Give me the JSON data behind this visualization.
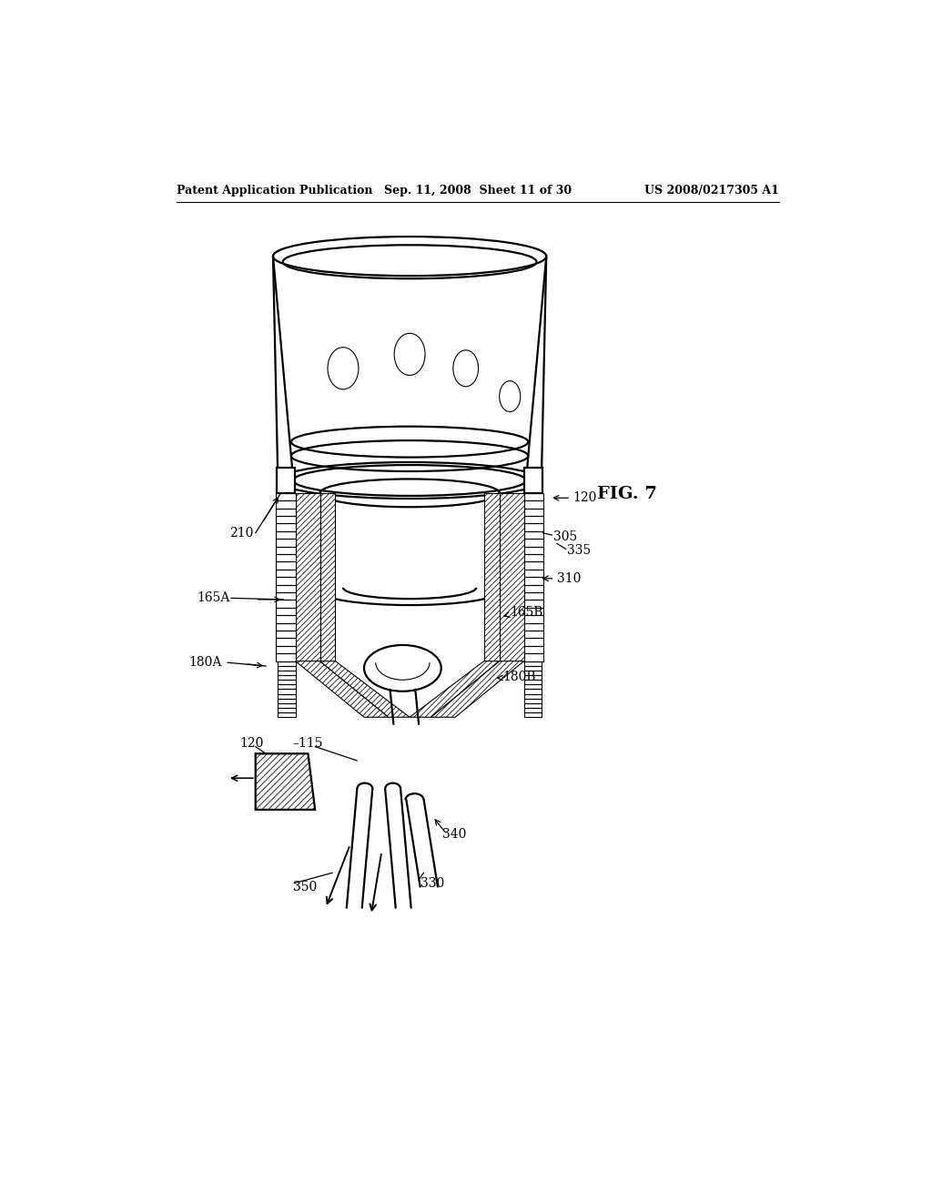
{
  "background_color": "#ffffff",
  "header_left": "Patent Application Publication",
  "header_mid": "Sep. 11, 2008  Sheet 11 of 30",
  "header_right": "US 2008/0217305 A1",
  "fig_label": "FIG. 7",
  "lw_main": 1.6,
  "lw_thin": 0.8,
  "lw_hatch": 0.55,
  "label_fs": 10,
  "header_fs": 9
}
